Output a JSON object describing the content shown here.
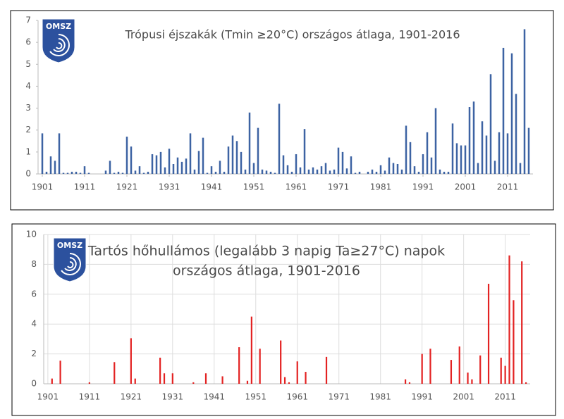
{
  "logo": "OMSZ",
  "chart_data": [
    {
      "type": "bar",
      "title": [
        "Trópusi éjszakák (Tmin ≥20°C) országos átlaga, 1901-2016"
      ],
      "color": "#3d63a3",
      "grid": false,
      "x": [
        1901,
        1902,
        1903,
        1904,
        1905,
        1906,
        1907,
        1908,
        1909,
        1910,
        1911,
        1912,
        1913,
        1914,
        1915,
        1916,
        1917,
        1918,
        1919,
        1920,
        1921,
        1922,
        1923,
        1924,
        1925,
        1926,
        1927,
        1928,
        1929,
        1930,
        1931,
        1932,
        1933,
        1934,
        1935,
        1936,
        1937,
        1938,
        1939,
        1940,
        1941,
        1942,
        1943,
        1944,
        1945,
        1946,
        1947,
        1948,
        1949,
        1950,
        1951,
        1952,
        1953,
        1954,
        1955,
        1956,
        1957,
        1958,
        1959,
        1960,
        1961,
        1962,
        1963,
        1964,
        1965,
        1966,
        1967,
        1968,
        1969,
        1970,
        1971,
        1972,
        1973,
        1974,
        1975,
        1976,
        1977,
        1978,
        1979,
        1980,
        1981,
        1982,
        1983,
        1984,
        1985,
        1986,
        1987,
        1988,
        1989,
        1990,
        1991,
        1992,
        1993,
        1994,
        1995,
        1996,
        1997,
        1998,
        1999,
        2000,
        2001,
        2002,
        2003,
        2004,
        2005,
        2006,
        2007,
        2008,
        2009,
        2010,
        2011,
        2012,
        2013,
        2014,
        2015,
        2016
      ],
      "values": [
        1.85,
        0.1,
        0.8,
        0.6,
        1.85,
        0.05,
        0.05,
        0.1,
        0.1,
        0.05,
        0.35,
        0.05,
        0,
        0,
        0,
        0.15,
        0.6,
        0.05,
        0.1,
        0.05,
        1.7,
        1.25,
        0.15,
        0.35,
        0.05,
        0.1,
        0.9,
        0.85,
        1.0,
        0.3,
        1.15,
        0.45,
        0.75,
        0.55,
        0.7,
        1.85,
        0.2,
        1.05,
        1.65,
        0.05,
        0.35,
        0.1,
        0.6,
        0.1,
        1.25,
        1.75,
        1.5,
        1.0,
        0.2,
        2.8,
        0.5,
        2.1,
        0.2,
        0.15,
        0.1,
        0.05,
        3.2,
        0.85,
        0.4,
        0.1,
        0.9,
        0.3,
        2.05,
        0.2,
        0.3,
        0.2,
        0.35,
        0.5,
        0.15,
        0.2,
        1.2,
        1.0,
        0.25,
        0.8,
        0.05,
        0.1,
        0,
        0.1,
        0.2,
        0.1,
        0.4,
        0.15,
        0.75,
        0.5,
        0.45,
        0.2,
        2.2,
        1.45,
        0.35,
        0.1,
        0.9,
        1.9,
        0.75,
        3.0,
        0.2,
        0.1,
        0.1,
        2.3,
        1.4,
        1.3,
        1.3,
        3.05,
        3.3,
        0.5,
        2.4,
        1.75,
        4.55,
        0.6,
        1.9,
        5.75,
        1.85,
        5.5,
        3.65,
        0.5,
        6.6,
        2.1
      ],
      "xlim": [
        1900,
        2017
      ],
      "xticks": [
        1901,
        1911,
        1921,
        1931,
        1941,
        1951,
        1961,
        1971,
        1981,
        1991,
        2001,
        2011
      ],
      "ylim": [
        0,
        7
      ],
      "yticks": [
        0,
        1,
        2,
        3,
        4,
        5,
        6,
        7
      ]
    },
    {
      "type": "bar",
      "title": [
        "Tartós hőhullámos (legalább 3 napig Ta≥27°C) napok",
        "országos átlaga, 1901-2016"
      ],
      "color": "#e32222",
      "grid": true,
      "x": [
        1901,
        1902,
        1903,
        1904,
        1905,
        1906,
        1907,
        1908,
        1909,
        1910,
        1911,
        1912,
        1913,
        1914,
        1915,
        1916,
        1917,
        1918,
        1919,
        1920,
        1921,
        1922,
        1923,
        1924,
        1925,
        1926,
        1927,
        1928,
        1929,
        1930,
        1931,
        1932,
        1933,
        1934,
        1935,
        1936,
        1937,
        1938,
        1939,
        1940,
        1941,
        1942,
        1943,
        1944,
        1945,
        1946,
        1947,
        1948,
        1949,
        1950,
        1951,
        1952,
        1953,
        1954,
        1955,
        1956,
        1957,
        1958,
        1959,
        1960,
        1961,
        1962,
        1963,
        1964,
        1965,
        1966,
        1967,
        1968,
        1969,
        1970,
        1971,
        1972,
        1973,
        1974,
        1975,
        1976,
        1977,
        1978,
        1979,
        1980,
        1981,
        1982,
        1983,
        1984,
        1985,
        1986,
        1987,
        1988,
        1989,
        1990,
        1991,
        1992,
        1993,
        1994,
        1995,
        1996,
        1997,
        1998,
        1999,
        2000,
        2001,
        2002,
        2003,
        2004,
        2005,
        2006,
        2007,
        2008,
        2009,
        2010,
        2011,
        2012,
        2013,
        2014,
        2015,
        2016
      ],
      "values": [
        0,
        0.35,
        0,
        1.55,
        0,
        0,
        0,
        0,
        0,
        0,
        0.1,
        0,
        0,
        0,
        0,
        0,
        1.45,
        0,
        0,
        0,
        3.05,
        0.35,
        0,
        0,
        0,
        0,
        0,
        1.75,
        0.7,
        0,
        0.7,
        0,
        0,
        0,
        0,
        0.1,
        0,
        0,
        0.7,
        0,
        0,
        0,
        0.5,
        0,
        0,
        0,
        2.45,
        0,
        0.2,
        4.5,
        0,
        2.35,
        0,
        0,
        0,
        0,
        2.9,
        0.45,
        0.1,
        0,
        1.5,
        0,
        0.8,
        0,
        0,
        0,
        0,
        1.8,
        0,
        0,
        0,
        0,
        0,
        0,
        0,
        0,
        0,
        0,
        0,
        0,
        0,
        0,
        0,
        0,
        0,
        0,
        0.3,
        0.1,
        0,
        0,
        2.0,
        0,
        2.35,
        0,
        0,
        0,
        0,
        1.6,
        0,
        2.5,
        0,
        0.75,
        0.3,
        0,
        1.9,
        0,
        6.7,
        0,
        0,
        1.75,
        1.2,
        8.6,
        5.6,
        0,
        8.2,
        0.1
      ],
      "xlim": [
        1900,
        2017
      ],
      "xticks": [
        1901,
        1911,
        1921,
        1931,
        1941,
        1951,
        1961,
        1971,
        1981,
        1991,
        2001,
        2011
      ],
      "ylim": [
        0,
        10
      ],
      "yticks": [
        0,
        2,
        4,
        6,
        8,
        10
      ]
    }
  ]
}
